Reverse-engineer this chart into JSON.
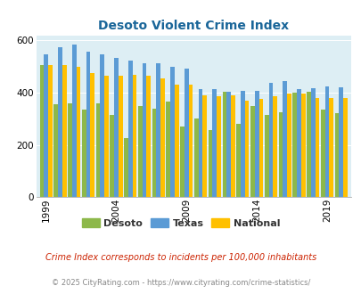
{
  "title": "Desoto Violent Crime Index",
  "title_color": "#1a6699",
  "years": [
    1999,
    2000,
    2001,
    2002,
    2003,
    2004,
    2005,
    2006,
    2007,
    2008,
    2009,
    2010,
    2011,
    2012,
    2013,
    2014,
    2015,
    2016,
    2017,
    2018,
    2019,
    2020
  ],
  "desoto": [
    505,
    355,
    360,
    335,
    360,
    315,
    225,
    350,
    340,
    365,
    270,
    300,
    258,
    405,
    280,
    350,
    315,
    325,
    400,
    405,
    335,
    320
  ],
  "texas": [
    548,
    573,
    583,
    558,
    548,
    533,
    523,
    513,
    513,
    498,
    493,
    413,
    413,
    403,
    408,
    408,
    438,
    443,
    413,
    418,
    423,
    420
  ],
  "national": [
    505,
    505,
    500,
    475,
    465,
    465,
    470,
    465,
    455,
    430,
    430,
    390,
    385,
    390,
    370,
    375,
    385,
    395,
    395,
    380,
    380,
    380
  ],
  "desoto_color": "#8db84a",
  "texas_color": "#5b9bd5",
  "national_color": "#ffc000",
  "bg_color": "#ddeef4",
  "ylim": [
    0,
    620
  ],
  "yticks": [
    0,
    200,
    400,
    600
  ],
  "xtick_years": [
    1999,
    2004,
    2009,
    2014,
    2019
  ],
  "xtick_labels": [
    "1999",
    "2004",
    "2009",
    "2014",
    "2019"
  ],
  "legend_labels": [
    "Desoto",
    "Texas",
    "National"
  ],
  "footnote1": "Crime Index corresponds to incidents per 100,000 inhabitants",
  "footnote2": "© 2025 CityRating.com - https://www.cityrating.com/crime-statistics/",
  "footnote1_color": "#cc2200",
  "footnote2_color": "#888888"
}
